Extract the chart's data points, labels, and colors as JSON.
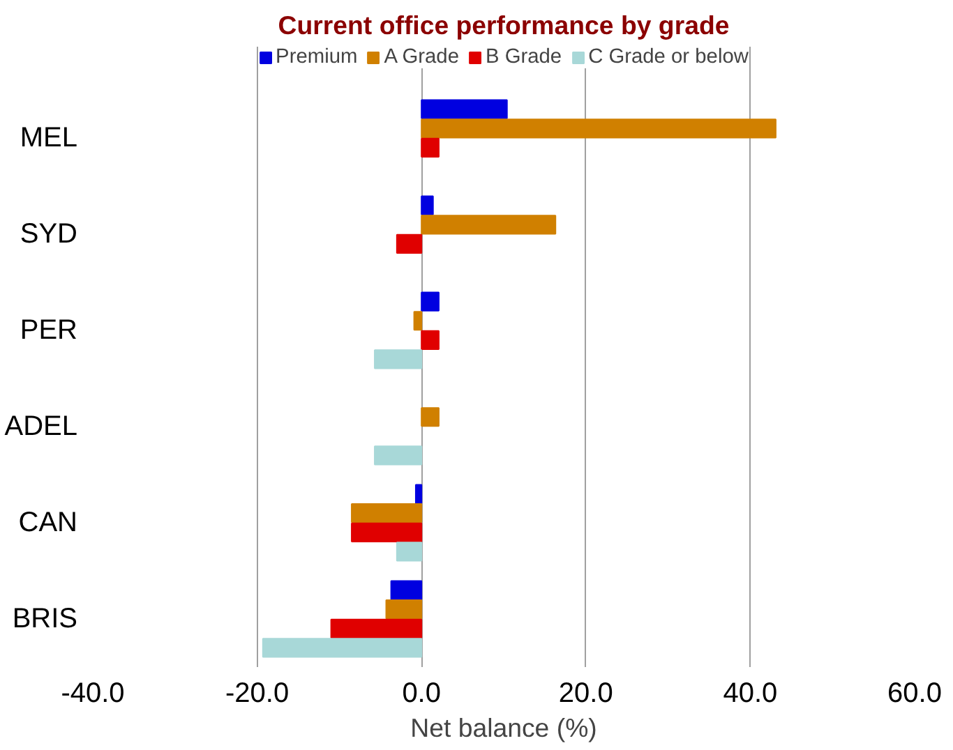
{
  "chart_data": {
    "type": "bar",
    "orientation": "horizontal",
    "title": "Current office performance by grade",
    "xlabel": "Net balance (%)",
    "categories": [
      "MEL",
      "SYD",
      "PER",
      "ADEL",
      "CAN",
      "BRIS"
    ],
    "series": [
      {
        "name": "Premium",
        "color": "#0000e0",
        "values": [
          10.4,
          1.4,
          2.1,
          null,
          -0.7,
          -3.7
        ]
      },
      {
        "name": "A Grade",
        "color": "#d08000",
        "values": [
          43.1,
          16.3,
          -0.9,
          2.1,
          -8.5,
          -4.3
        ]
      },
      {
        "name": "B Grade",
        "color": "#e00000",
        "values": [
          2.1,
          -3.0,
          2.1,
          null,
          -8.5,
          -11.0
        ]
      },
      {
        "name": "C Grade or below",
        "color": "#a8d8d8",
        "values": [
          null,
          null,
          -5.7,
          -5.7,
          -3.0,
          -19.3
        ]
      }
    ],
    "xlim": [
      -40,
      60
    ],
    "xticks": [
      {
        "value": -40,
        "label": "-40.0"
      },
      {
        "value": -20,
        "label": "-20.0"
      },
      {
        "value": 0,
        "label": "0.0"
      },
      {
        "value": 20,
        "label": "20.0"
      },
      {
        "value": 40,
        "label": "40.0"
      },
      {
        "value": 60,
        "label": "60.0"
      }
    ],
    "grid": "x",
    "legend": "top"
  }
}
